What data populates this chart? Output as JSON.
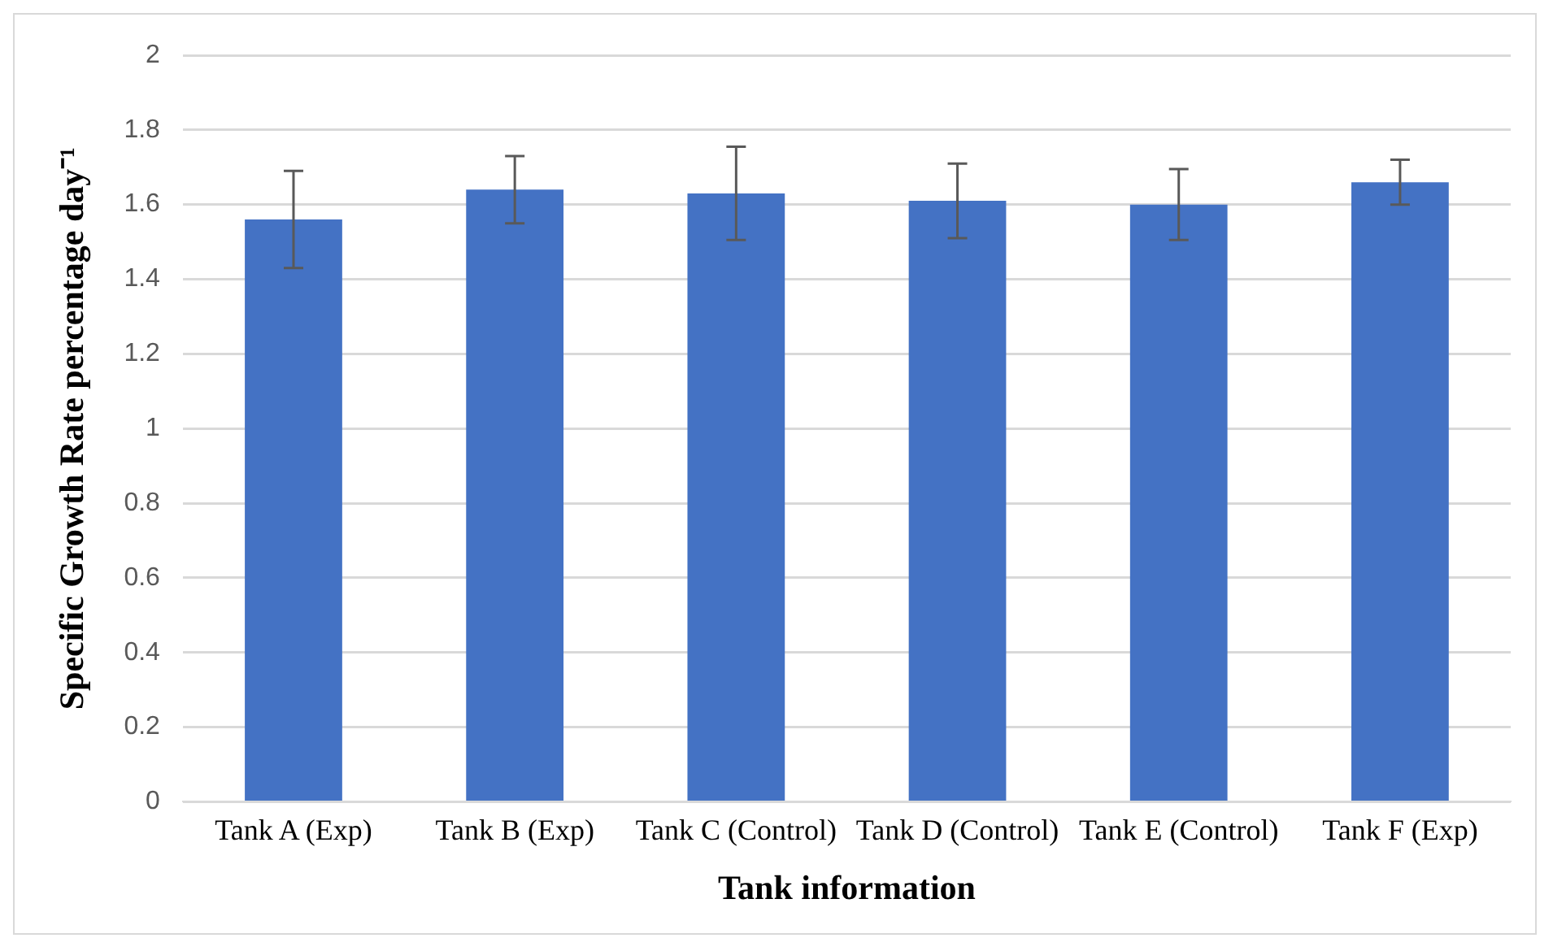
{
  "chart_data": {
    "type": "bar",
    "xlabel": "Tank information",
    "ylabel": "Specific Growth Rate percentage day⁻¹",
    "categories": [
      "Tank A (Exp)",
      "Tank B (Exp)",
      "Tank C (Control)",
      "Tank D (Control)",
      "Tank E (Control)",
      "Tank F (Exp)"
    ],
    "values": [
      1.56,
      1.64,
      1.63,
      1.61,
      1.6,
      1.66
    ],
    "errors": [
      0.13,
      0.09,
      0.125,
      0.1,
      0.095,
      0.06
    ],
    "color": "#4472c4",
    "ylim": [
      0,
      2
    ],
    "yticks": [
      0,
      0.2,
      0.4,
      0.6,
      0.8,
      1,
      1.2,
      1.4,
      1.6,
      1.8,
      2
    ],
    "grid": "y",
    "legend": false
  }
}
